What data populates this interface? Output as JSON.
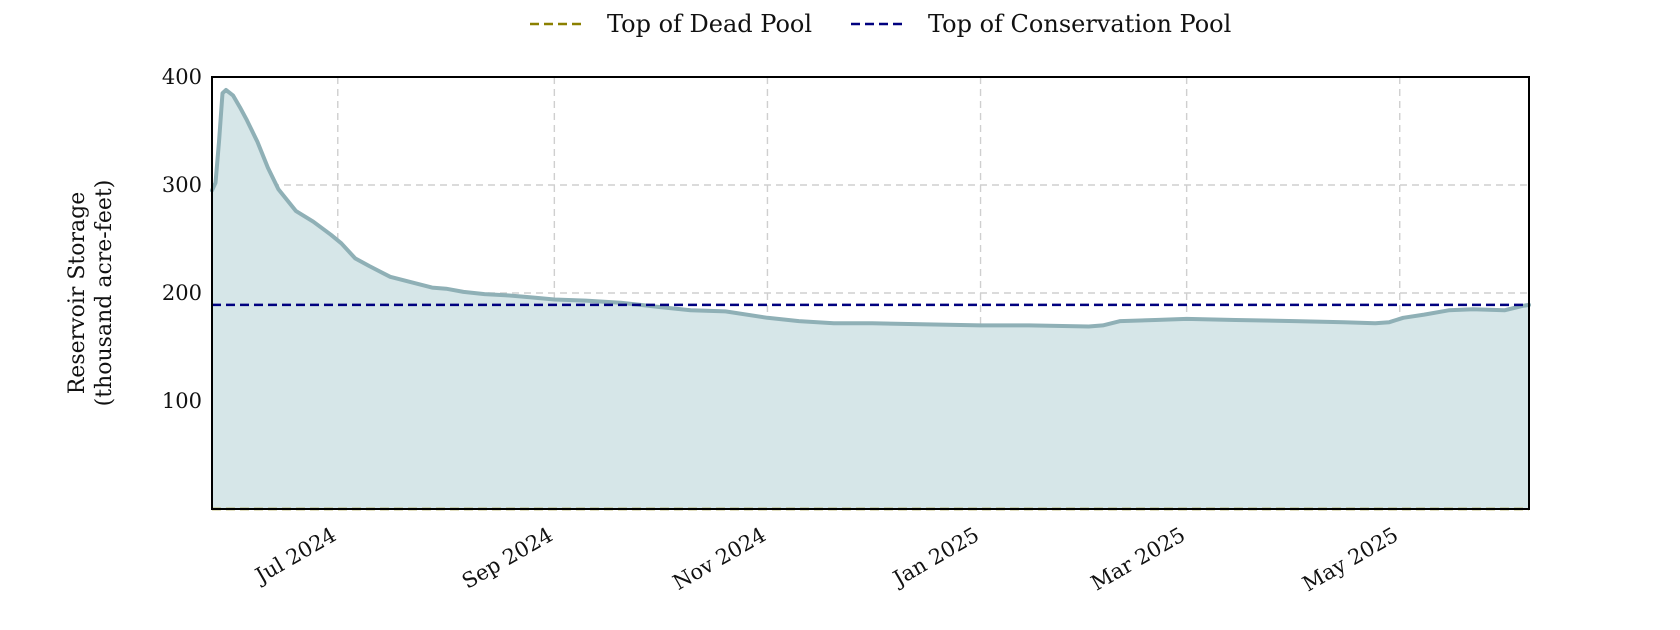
{
  "chart_data": {
    "type": "area",
    "title": "",
    "xlabel": "",
    "ylabel": "Reservoir Storage\n(thousand acre-feet)",
    "xlim": [
      "2024-05-26",
      "2025-06-07"
    ],
    "ylim": [
      0,
      400
    ],
    "grid": true,
    "legend_position": "top-center",
    "x_ticks": [
      {
        "date": "2024-07-01",
        "label": "Jul 2024"
      },
      {
        "date": "2024-09-01",
        "label": "Sep 2024"
      },
      {
        "date": "2024-11-01",
        "label": "Nov 2024"
      },
      {
        "date": "2025-01-01",
        "label": "Jan 2025"
      },
      {
        "date": "2025-03-01",
        "label": "Mar 2025"
      },
      {
        "date": "2025-05-01",
        "label": "May 2025"
      }
    ],
    "y_ticks": [
      100,
      200,
      300,
      400
    ],
    "reference_lines": [
      {
        "name": "Top of Dead Pool",
        "value": 0,
        "color": "#8b8000",
        "style": "dashed"
      },
      {
        "name": "Top of Conservation Pool",
        "value": 189,
        "color": "#00007f",
        "style": "dashed"
      }
    ],
    "series": [
      {
        "line_color": "#8fb0b6",
        "fill_color": "#d6e6e8",
        "points": [
          [
            "2024-05-26",
            295
          ],
          [
            "2024-05-27",
            302
          ],
          [
            "2024-05-28",
            340
          ],
          [
            "2024-05-29",
            385
          ],
          [
            "2024-05-30",
            388
          ],
          [
            "2024-06-01",
            383
          ],
          [
            "2024-06-03",
            372
          ],
          [
            "2024-06-05",
            360
          ],
          [
            "2024-06-08",
            340
          ],
          [
            "2024-06-11",
            316
          ],
          [
            "2024-06-14",
            296
          ],
          [
            "2024-06-19",
            276
          ],
          [
            "2024-06-24",
            266
          ],
          [
            "2024-06-29",
            254
          ],
          [
            "2024-07-02",
            246
          ],
          [
            "2024-07-06",
            232
          ],
          [
            "2024-07-10",
            225
          ],
          [
            "2024-07-16",
            215
          ],
          [
            "2024-07-22",
            210
          ],
          [
            "2024-07-28",
            205
          ],
          [
            "2024-08-01",
            204
          ],
          [
            "2024-08-06",
            201
          ],
          [
            "2024-08-12",
            199
          ],
          [
            "2024-08-18",
            198
          ],
          [
            "2024-08-25",
            196
          ],
          [
            "2024-09-01",
            194
          ],
          [
            "2024-09-10",
            193
          ],
          [
            "2024-09-20",
            191
          ],
          [
            "2024-10-01",
            187
          ],
          [
            "2024-10-10",
            184
          ],
          [
            "2024-10-20",
            183
          ],
          [
            "2024-11-01",
            177
          ],
          [
            "2024-11-10",
            174
          ],
          [
            "2024-11-20",
            172
          ],
          [
            "2024-12-01",
            172
          ],
          [
            "2024-12-15",
            171
          ],
          [
            "2025-01-01",
            170
          ],
          [
            "2025-01-15",
            170
          ],
          [
            "2025-02-01",
            169
          ],
          [
            "2025-02-05",
            170
          ],
          [
            "2025-02-10",
            174
          ],
          [
            "2025-02-20",
            175
          ],
          [
            "2025-03-01",
            176
          ],
          [
            "2025-03-15",
            175
          ],
          [
            "2025-04-01",
            174
          ],
          [
            "2025-04-15",
            173
          ],
          [
            "2025-04-24",
            172
          ],
          [
            "2025-04-28",
            173
          ],
          [
            "2025-05-02",
            177
          ],
          [
            "2025-05-08",
            180
          ],
          [
            "2025-05-15",
            184
          ],
          [
            "2025-05-22",
            185
          ],
          [
            "2025-05-31",
            184
          ],
          [
            "2025-06-05",
            188
          ],
          [
            "2025-06-07",
            189
          ]
        ]
      }
    ]
  }
}
